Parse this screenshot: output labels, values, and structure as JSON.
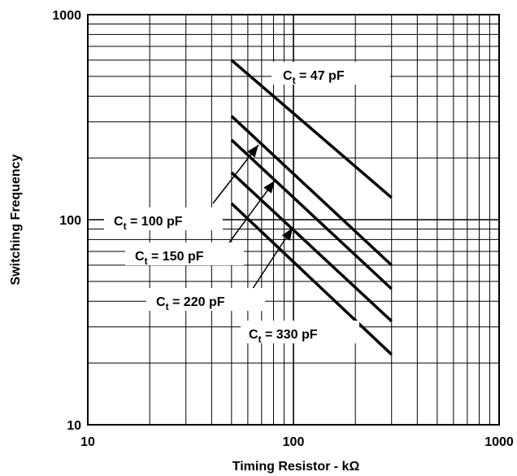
{
  "chart_data": {
    "type": "line",
    "xlabel": "Timing Resistor - kΩ",
    "ylabel": "Switching Frequency",
    "x_scale": "log",
    "y_scale": "log",
    "xlim": [
      10,
      1000
    ],
    "ylim": [
      10,
      1000
    ],
    "grid": true,
    "x_ticks": [
      "10",
      "100",
      "1000"
    ],
    "y_ticks": [
      "10",
      "100",
      "1000"
    ],
    "series": [
      {
        "name": "Ct = 47 pF",
        "label_main": "C",
        "label_sub": "t",
        "label_rest": " = 47 pF",
        "x": [
          50,
          300
        ],
        "y": [
          600,
          128
        ]
      },
      {
        "name": "Ct = 100 pF",
        "label_main": "C",
        "label_sub": "t",
        "label_rest": " = 100 pF",
        "x": [
          50,
          300
        ],
        "y": [
          320,
          60
        ]
      },
      {
        "name": "Ct = 150 pF",
        "label_main": "C",
        "label_sub": "t",
        "label_rest": " = 150 pF",
        "x": [
          50,
          300
        ],
        "y": [
          245,
          46
        ]
      },
      {
        "name": "Ct = 220 pF",
        "label_main": "C",
        "label_sub": "t",
        "label_rest": " = 220 pF",
        "x": [
          50,
          300
        ],
        "y": [
          170,
          32
        ]
      },
      {
        "name": "Ct = 330 pF",
        "label_main": "C",
        "label_sub": "t",
        "label_rest": " = 330 pF",
        "x": [
          50,
          300
        ],
        "y": [
          120,
          22
        ]
      }
    ]
  }
}
